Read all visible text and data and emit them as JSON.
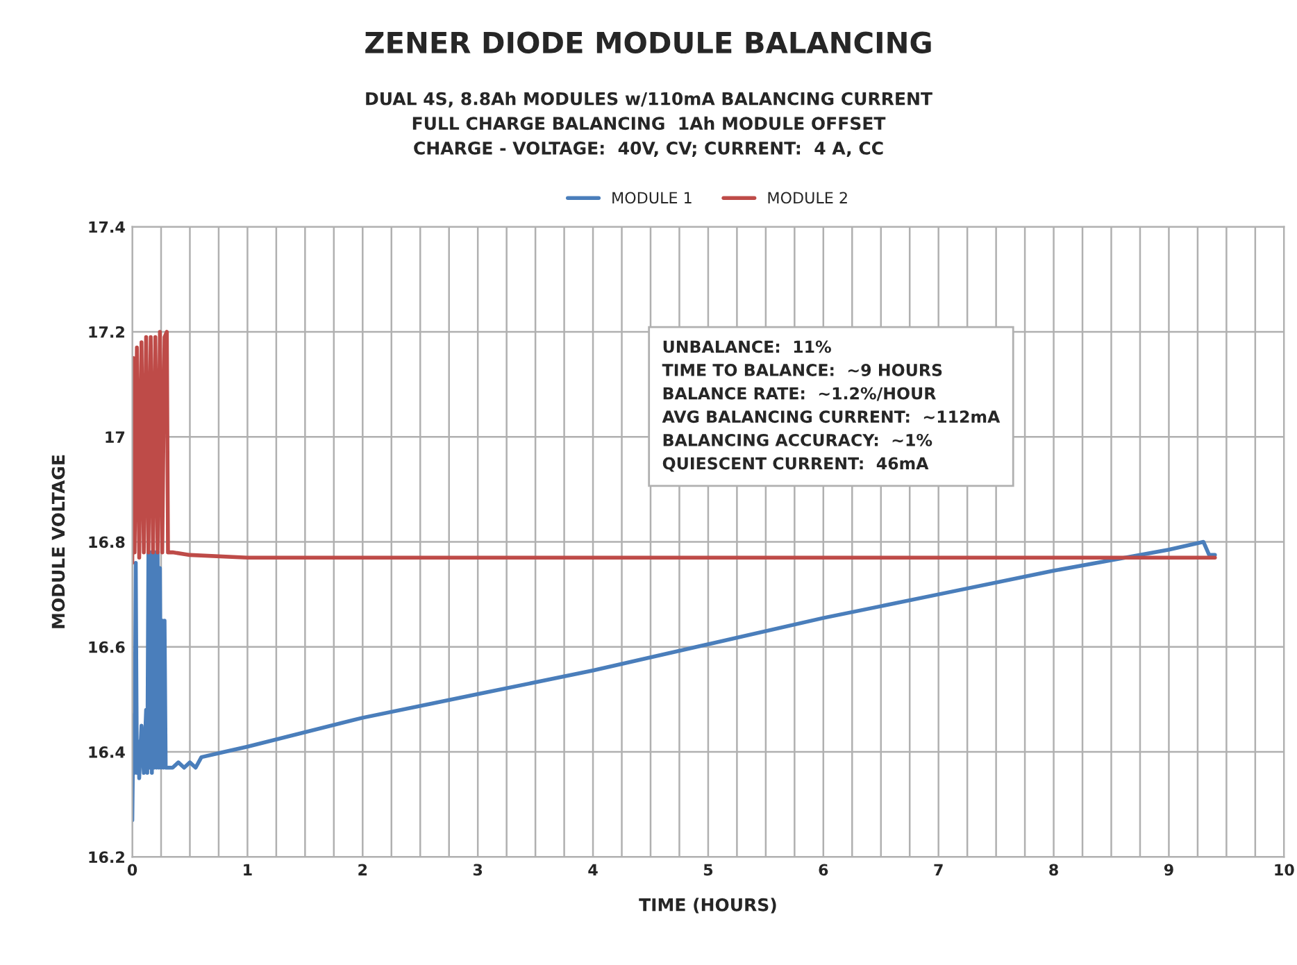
{
  "chart_data": {
    "type": "line",
    "title": "ZENER DIODE MODULE BALANCING",
    "subtitle": "DUAL 4S, 8.8Ah MODULES w/110mA BALANCING CURRENT\nFULL CHARGE BALANCING  1Ah MODULE OFFSET\nCHARGE - VOLTAGE:  40V, CV; CURRENT:  4 A, CC",
    "xlabel": "TIME (HOURS)",
    "ylabel": "MODULE VOLTAGE",
    "annotations": [
      "UNBALANCE:  11%\nTIME TO BALANCE:  ~9 HOURS\nBALANCE RATE:  ~1.2%/HOUR\nAVG BALANCING CURRENT:  ~112mA\nBALANCING ACCURACY:  ~1%\nQUIESCENT CURRENT:  46mA"
    ],
    "series": [
      {
        "name": "MODULE 1",
        "color": "#4a7ebb",
        "x": [
          0,
          0.01,
          0.02,
          0.03,
          0.04,
          0.05,
          0.06,
          0.08,
          0.1,
          0.12,
          0.13,
          0.14,
          0.15,
          0.16,
          0.17,
          0.18,
          0.19,
          0.2,
          0.21,
          0.22,
          0.23,
          0.24,
          0.25,
          0.26,
          0.27,
          0.28,
          0.29,
          0.3,
          0.35,
          0.4,
          0.45,
          0.5,
          0.55,
          0.6,
          0.8,
          1,
          2,
          3,
          4,
          5,
          6,
          7,
          8,
          9,
          9.3,
          9.35,
          9.4
        ],
        "values": [
          16.27,
          16.47,
          16.36,
          16.76,
          16.36,
          16.42,
          16.35,
          16.45,
          16.36,
          16.48,
          16.36,
          16.78,
          16.37,
          16.78,
          16.36,
          16.78,
          16.37,
          16.78,
          16.37,
          16.78,
          16.37,
          16.75,
          16.37,
          16.65,
          16.37,
          16.65,
          16.37,
          16.37,
          16.37,
          16.38,
          16.37,
          16.38,
          16.37,
          16.39,
          16.4,
          16.41,
          16.465,
          16.51,
          16.555,
          16.605,
          16.655,
          16.7,
          16.745,
          16.785,
          16.8,
          16.775,
          16.775
        ]
      },
      {
        "name": "MODULE 2",
        "color": "#be4b48",
        "x": [
          0,
          0.01,
          0.02,
          0.04,
          0.06,
          0.08,
          0.1,
          0.12,
          0.14,
          0.16,
          0.18,
          0.2,
          0.22,
          0.24,
          0.26,
          0.28,
          0.3,
          0.31,
          0.35,
          0.5,
          1,
          2,
          4,
          6,
          8,
          9,
          9.4
        ],
        "values": [
          16.76,
          17.15,
          16.78,
          17.17,
          16.77,
          17.18,
          16.78,
          17.19,
          16.78,
          17.19,
          16.78,
          17.19,
          16.78,
          17.2,
          16.78,
          17.19,
          17.2,
          16.78,
          16.78,
          16.775,
          16.77,
          16.77,
          16.77,
          16.77,
          16.77,
          16.77,
          16.77
        ]
      }
    ],
    "xlim": [
      0,
      10
    ],
    "xticks": [
      0,
      {
        "value": 0.25,
        "label": null
      },
      {
        "value": 0.5,
        "label": null
      },
      {
        "value": 0.75,
        "label": null
      },
      1,
      {
        "value": 1.25,
        "label": null
      },
      {
        "value": 1.5,
        "label": null
      },
      {
        "value": 1.75,
        "label": null
      },
      2,
      {
        "value": 2.25,
        "label": null
      },
      {
        "value": 2.5,
        "label": null
      },
      {
        "value": 2.75,
        "label": null
      },
      3,
      {
        "value": 3.25,
        "label": null
      },
      {
        "value": 3.5,
        "label": null
      },
      {
        "value": 3.75,
        "label": null
      },
      4,
      {
        "value": 4.25,
        "label": null
      },
      {
        "value": 4.5,
        "label": null
      },
      {
        "value": 4.75,
        "label": null
      },
      5,
      {
        "value": 5.25,
        "label": null
      },
      {
        "value": 5.5,
        "label": null
      },
      {
        "value": 5.75,
        "label": null
      },
      6,
      {
        "value": 6.25,
        "label": null
      },
      {
        "value": 6.5,
        "label": null
      },
      {
        "value": 6.75,
        "label": null
      },
      7,
      {
        "value": 7.25,
        "label": null
      },
      {
        "value": 7.5,
        "label": null
      },
      {
        "value": 7.75,
        "label": null
      },
      8,
      {
        "value": 8.25,
        "label": null
      },
      {
        "value": 8.5,
        "label": null
      },
      {
        "value": 8.75,
        "label": null
      },
      9,
      {
        "value": 9.25,
        "label": null
      },
      {
        "value": 9.5,
        "label": null
      },
      {
        "value": 9.75,
        "label": null
      },
      10
    ],
    "ylim": [
      16.2,
      17.4
    ],
    "yticks": [
      16.2,
      16.4,
      16.6,
      16.8,
      17,
      17.2,
      17.4
    ],
    "grid": true,
    "legend": "top",
    "marker": "none",
    "line_style": "solid"
  }
}
